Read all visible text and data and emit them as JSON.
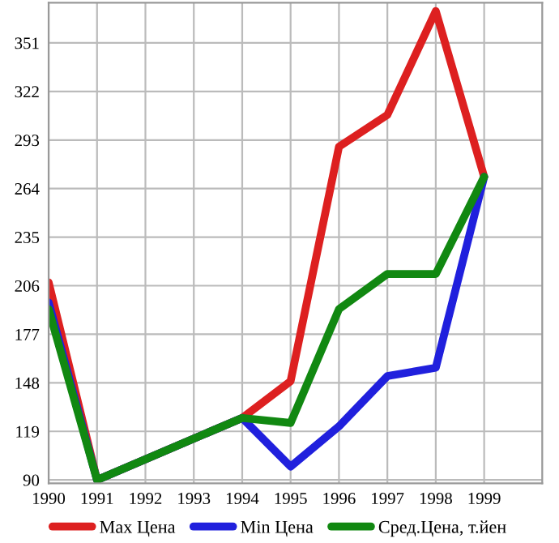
{
  "chart_data": {
    "type": "line",
    "x": [
      1990,
      1991,
      1994,
      1995,
      1996,
      1997,
      1998,
      1999
    ],
    "series": [
      {
        "name": "Max Цена",
        "color": "#dd2020",
        "values": [
          208,
          90,
          127,
          149,
          289,
          308,
          370,
          271
        ]
      },
      {
        "name": "Min Цена",
        "color": "#2020dd",
        "values": [
          196,
          90,
          127,
          98,
          122,
          152,
          157,
          271
        ]
      },
      {
        "name": "Сред.Цена, т.йен",
        "color": "#118811",
        "values": [
          192,
          90,
          127,
          124,
          192,
          213,
          213,
          271
        ]
      }
    ],
    "xlim": [
      1990,
      2000.2
    ],
    "xticks": [
      1990,
      1991,
      1992,
      1993,
      1994,
      1995,
      1996,
      1997,
      1998,
      1999
    ],
    "ylim": [
      88,
      375
    ],
    "yticks": [
      90,
      119,
      148,
      177,
      206,
      235,
      264,
      293,
      322,
      351
    ],
    "grid": true,
    "legend": "bottom",
    "marker": "none",
    "line_style": "solid"
  }
}
